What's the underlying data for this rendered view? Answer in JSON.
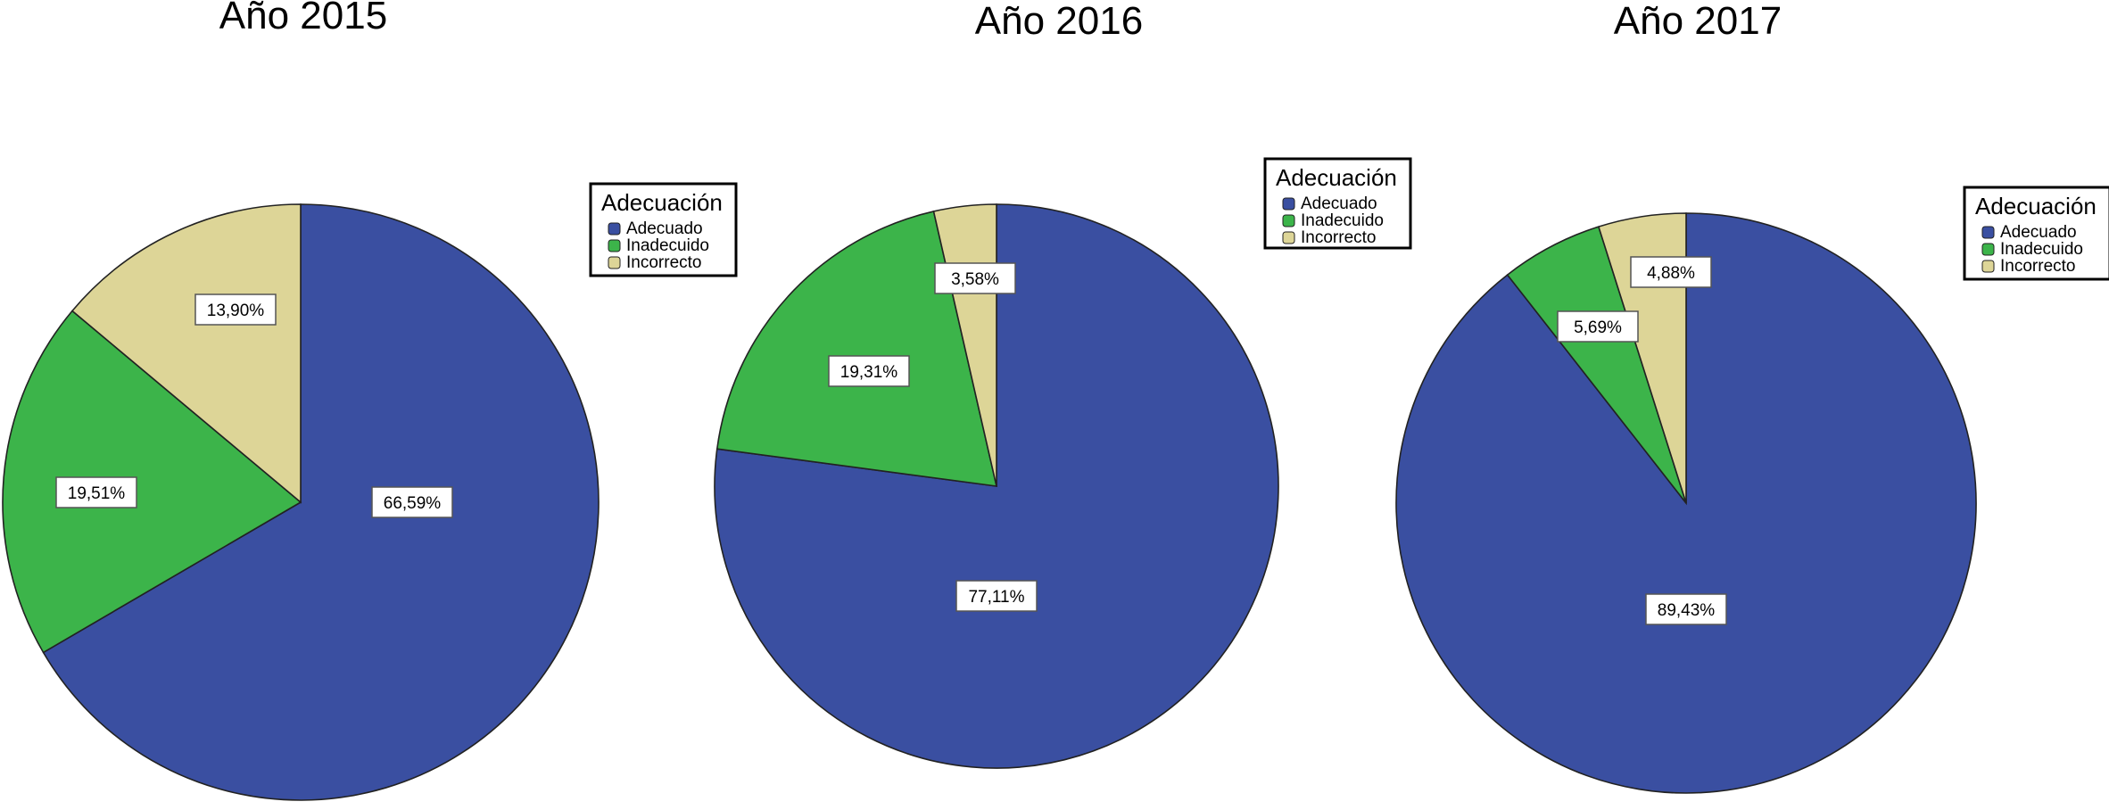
{
  "legend_title": "Adecuación",
  "categories": [
    "Adecuado",
    "Inadecuido",
    "Incorrecto"
  ],
  "colors": {
    "Adecuado": "#3a4fa1",
    "Inadecuido": "#3cb44a",
    "Incorrecto": "#ddd597"
  },
  "chart_data": [
    {
      "type": "pie",
      "title": "Año 2015",
      "categories": [
        "Adecuado",
        "Inadecuido",
        "Incorrecto"
      ],
      "values": [
        66.59,
        19.51,
        13.9
      ],
      "labels": [
        "66,59%",
        "19,51%",
        "13,90%"
      ],
      "legend": "right"
    },
    {
      "type": "pie",
      "title": "Año 2016",
      "categories": [
        "Adecuado",
        "Inadecuido",
        "Incorrecto"
      ],
      "values": [
        77.11,
        19.31,
        3.58
      ],
      "labels": [
        "77,11%",
        "19,31%",
        "3,58%"
      ],
      "legend": "right"
    },
    {
      "type": "pie",
      "title": "Año 2017",
      "categories": [
        "Adecuado",
        "Inadecuido",
        "Incorrecto"
      ],
      "values": [
        89.43,
        5.69,
        4.88
      ],
      "labels": [
        "89,43%",
        "5,69%",
        "4,88%"
      ],
      "legend": "right"
    }
  ]
}
